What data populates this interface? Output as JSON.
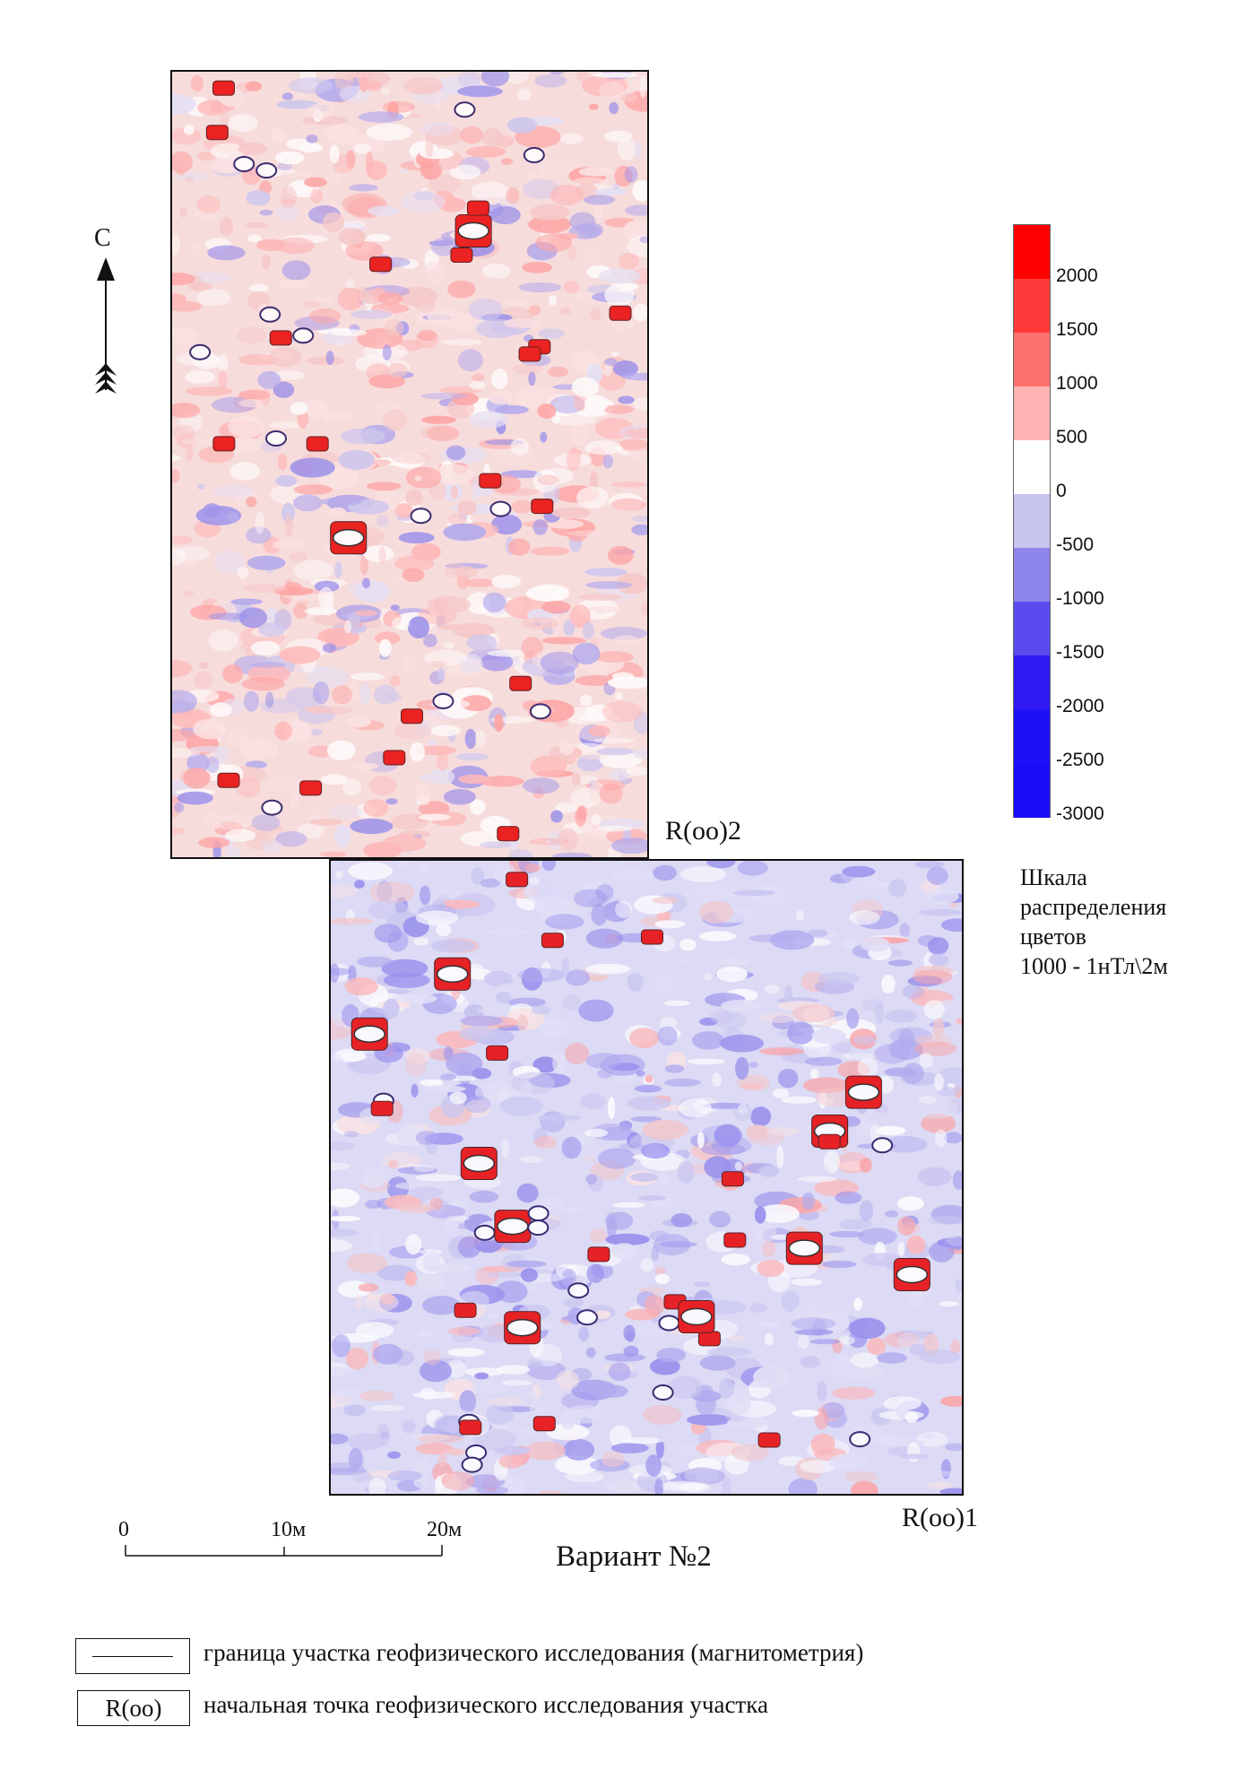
{
  "north": {
    "label": "С"
  },
  "panel_top": {
    "corner_label": "R(oo)2"
  },
  "panel_bottom": {
    "corner_label": "R(oo)1"
  },
  "color_scale": {
    "bands": [
      {
        "color": "#ff0000"
      },
      {
        "color": "#ff3a3a"
      },
      {
        "color": "#ff7070"
      },
      {
        "color": "#ffb3b3"
      },
      {
        "color": "#ffffff"
      },
      {
        "color": "#c8c4f0"
      },
      {
        "color": "#8f86ec"
      },
      {
        "color": "#5a4bef"
      },
      {
        "color": "#2f1af2"
      },
      {
        "color": "#1e10f5"
      },
      {
        "color": "#1a0cf7"
      }
    ],
    "labels": [
      "2000",
      "1500",
      "1000",
      "500",
      "0",
      "-500",
      "-1000",
      "-1500",
      "-2000",
      "-2500",
      "-3000"
    ],
    "caption": [
      "Шкала",
      "распределения",
      "цветов",
      "1000 - 1нТл\\2м"
    ]
  },
  "scale_bar": {
    "ticks": [
      "0",
      "10м",
      "20м"
    ]
  },
  "title": "Вариант №2",
  "legend": {
    "boundary_text": "граница участка геофизического исследования (магнитометрия)",
    "start_box": "R(oo)",
    "start_text": "начальная точка геофизического исследования участка"
  }
}
